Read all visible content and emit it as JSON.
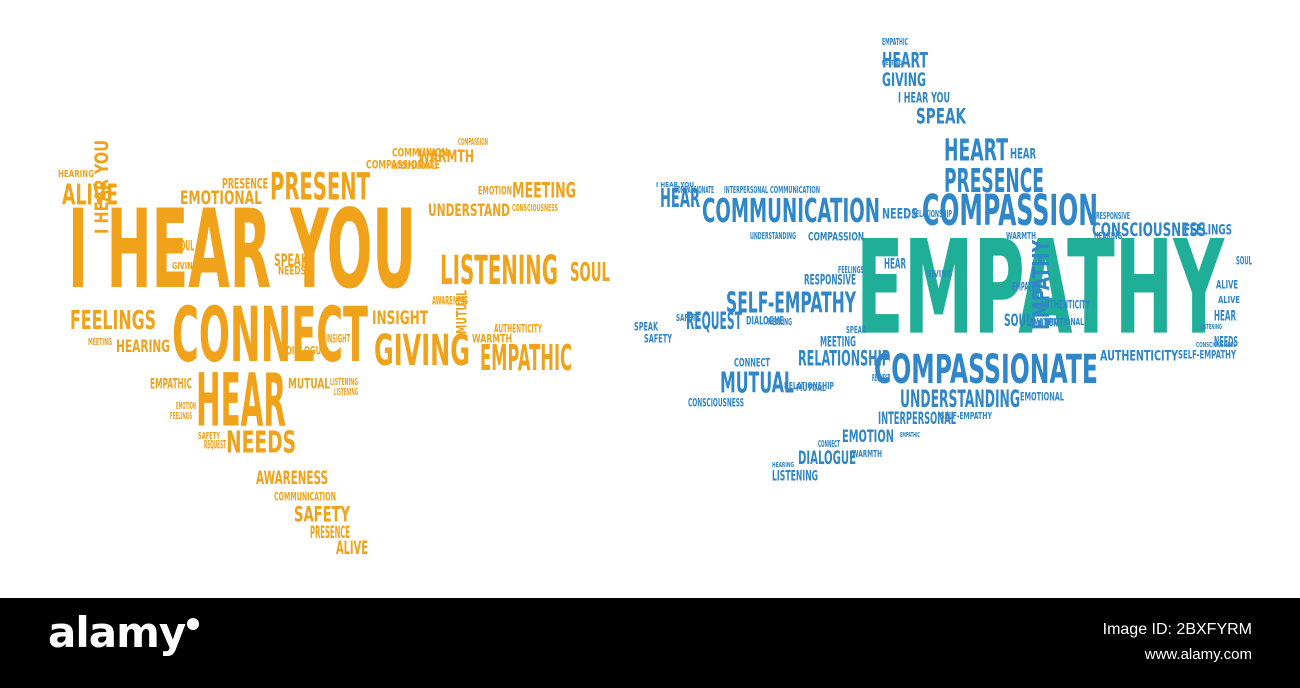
{
  "colors": {
    "orange": "#f0a21a",
    "blue": "#2f86c8",
    "teal": "#1faf98",
    "footer_bg": "#000000",
    "footer_text": "#ffffff"
  },
  "left_cloud": {
    "main_words": [
      "I HEAR YOU",
      "CONNECT",
      "HEAR",
      "PRESENT",
      "LISTENING",
      "GIVING",
      "EMPATHIC",
      "NEEDS",
      "FEELINGS",
      "ALIVE",
      "EMOTIONAL",
      "MEETING",
      "UNDERSTAND",
      "INSIGHT",
      "AWARENESS",
      "SAFETY",
      "SOUL",
      "WARMTH",
      "COMMUNION",
      "HEARING",
      "MUTUAL",
      "PRESENCE",
      "COMPASSIONATE",
      "EMOTION",
      "COMMUNICATION",
      "AUTHENTICITY",
      "SPEAK",
      "REQUEST",
      "DIALOGUE",
      "LISTENING",
      "CONSCIOUSNESS",
      "COMPASSION",
      "INTERPERSONAL"
    ]
  },
  "right_cloud": {
    "main_words": [
      "EMPATHY",
      "COMMUNICATION",
      "COMPASSION",
      "COMPASSIONATE",
      "PRESENCE",
      "HEART",
      "SELF-EMPATHY",
      "MUTUAL",
      "REQUEST",
      "HEAR",
      "RELATIONSHIP",
      "UNDERSTANDING",
      "CONSCIOUSNESS",
      "GIVING",
      "SPEAK",
      "I HEAR YOU",
      "DIALOGUE",
      "EMOTION",
      "INTERPERSONAL",
      "LISTENING",
      "AUTHENTICITY",
      "FEELINGS",
      "NEEDS",
      "MEETING",
      "SOUL",
      "EMPATHIC",
      "ALIVE",
      "SAFETY",
      "CONNECT",
      "RESPONSIVE",
      "EMOTIONAL",
      "WARMTH",
      "HEARING"
    ]
  },
  "footer": {
    "brand": "alamy",
    "image_id": "Image ID: 2BXFYRM",
    "url": "www.alamy.com"
  }
}
